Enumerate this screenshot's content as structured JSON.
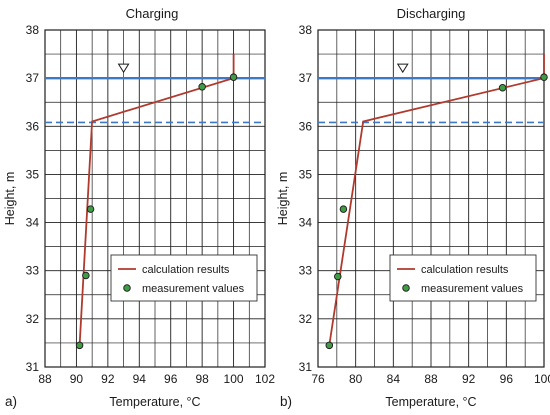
{
  "chart_data": [
    {
      "panel_label": "a)",
      "title": "Charging",
      "type": "line",
      "xlabel": "Temperature, °C",
      "ylabel": "Height, m",
      "xlim": [
        88,
        102
      ],
      "ylim": [
        31,
        38
      ],
      "xticks": [
        "88",
        "90",
        "92",
        "94",
        "96",
        "98",
        "100",
        "102"
      ],
      "yticks": [
        "31",
        "32",
        "33",
        "34",
        "35",
        "36",
        "37",
        "38"
      ],
      "grid": true,
      "water_level": 37.0,
      "water_level_marker_x": 93,
      "dashed_level": 36.08,
      "legend_position": "bottom-right",
      "series": [
        {
          "name": "calculation results",
          "style": "line",
          "color": "#b03a2e",
          "x": [
            90.2,
            91.0,
            100.0,
            100.0
          ],
          "y": [
            31.45,
            36.1,
            37.0,
            37.5
          ]
        },
        {
          "name": "measurement values",
          "style": "scatter",
          "color": "#3f9b44",
          "x": [
            90.2,
            90.6,
            90.9,
            98.0,
            100.0
          ],
          "y": [
            31.45,
            32.9,
            34.28,
            36.82,
            37.02
          ]
        }
      ]
    },
    {
      "panel_label": "b)",
      "title": "Discharging",
      "type": "line",
      "xlabel": "Temperature, °C",
      "ylabel": "Height, m",
      "xlim": [
        76,
        100
      ],
      "ylim": [
        31,
        38
      ],
      "xticks": [
        "76",
        "80",
        "84",
        "88",
        "92",
        "96",
        "100"
      ],
      "yticks": [
        "31",
        "32",
        "33",
        "34",
        "35",
        "36",
        "37",
        "38"
      ],
      "grid": true,
      "water_level": 37.0,
      "water_level_marker_x": 85,
      "dashed_level": 36.08,
      "legend_position": "bottom-right",
      "series": [
        {
          "name": "calculation results",
          "style": "line",
          "color": "#b03a2e",
          "x": [
            77.2,
            80.8,
            100.0,
            100.0
          ],
          "y": [
            31.45,
            36.1,
            37.0,
            37.5
          ]
        },
        {
          "name": "measurement values",
          "style": "scatter",
          "color": "#3f9b44",
          "x": [
            77.2,
            78.1,
            78.7,
            95.6,
            100.0
          ],
          "y": [
            31.45,
            32.88,
            34.28,
            36.8,
            37.02
          ]
        }
      ]
    }
  ],
  "colors": {
    "water_line": "#3d78c9",
    "dashed_line": "#3d78c9",
    "grid": "#1f1f1f",
    "calc_line": "#b03a2e",
    "marker_fill": "#3f9b44",
    "marker_stroke": "#1a1a1a"
  }
}
